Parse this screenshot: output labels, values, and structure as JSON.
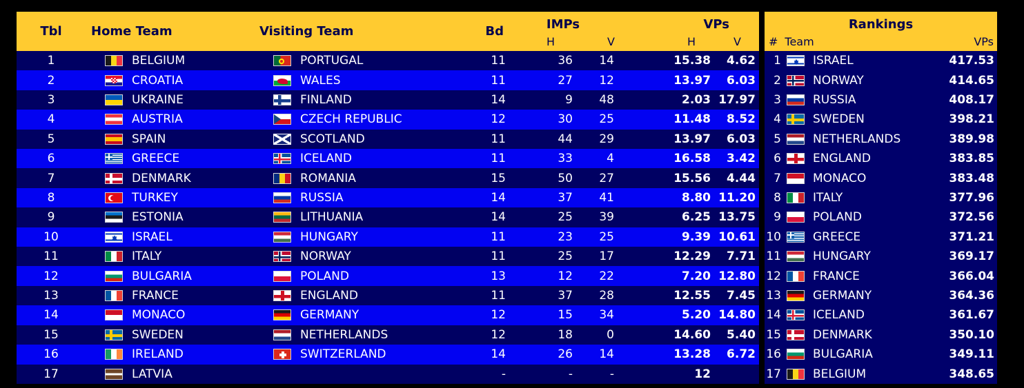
{
  "colors": {
    "gold": "#FFCB30",
    "header_text": "#00004D",
    "row_dark": "#000063",
    "row_bright": "#0202F2",
    "ranking_row": "#00006B",
    "page_bg": "#000000",
    "text": "#FFFFFF"
  },
  "results": {
    "headers": {
      "tbl": "Tbl",
      "home": "Home Team",
      "visiting": "Visiting Team",
      "bd": "Bd",
      "imps": "IMPs",
      "vps": "VPs",
      "h": "H",
      "v": "V"
    },
    "rows": [
      {
        "tbl": "1",
        "home": "BELGIUM",
        "home_flag": "belgium",
        "visiting": "PORTUGAL",
        "visiting_flag": "portugal",
        "bd": "11",
        "imp_h": "36",
        "imp_v": "14",
        "vp_h": "15.38",
        "vp_v": "4.62"
      },
      {
        "tbl": "2",
        "home": "CROATIA",
        "home_flag": "croatia",
        "visiting": "WALES",
        "visiting_flag": "wales",
        "bd": "11",
        "imp_h": "27",
        "imp_v": "12",
        "vp_h": "13.97",
        "vp_v": "6.03"
      },
      {
        "tbl": "3",
        "home": "UKRAINE",
        "home_flag": "ukraine",
        "visiting": "FINLAND",
        "visiting_flag": "finland",
        "bd": "14",
        "imp_h": "9",
        "imp_v": "48",
        "vp_h": "2.03",
        "vp_v": "17.97"
      },
      {
        "tbl": "4",
        "home": "AUSTRIA",
        "home_flag": "austria",
        "visiting": "CZECH REPUBLIC",
        "visiting_flag": "czech",
        "bd": "12",
        "imp_h": "30",
        "imp_v": "25",
        "vp_h": "11.48",
        "vp_v": "8.52"
      },
      {
        "tbl": "5",
        "home": "SPAIN",
        "home_flag": "spain",
        "visiting": "SCOTLAND",
        "visiting_flag": "scotland",
        "bd": "11",
        "imp_h": "44",
        "imp_v": "29",
        "vp_h": "13.97",
        "vp_v": "6.03"
      },
      {
        "tbl": "6",
        "home": "GREECE",
        "home_flag": "greece",
        "visiting": "ICELAND",
        "visiting_flag": "iceland",
        "bd": "11",
        "imp_h": "33",
        "imp_v": "4",
        "vp_h": "16.58",
        "vp_v": "3.42"
      },
      {
        "tbl": "7",
        "home": "DENMARK",
        "home_flag": "denmark",
        "visiting": "ROMANIA",
        "visiting_flag": "romania",
        "bd": "15",
        "imp_h": "50",
        "imp_v": "27",
        "vp_h": "15.56",
        "vp_v": "4.44"
      },
      {
        "tbl": "8",
        "home": "TURKEY",
        "home_flag": "turkey",
        "visiting": "RUSSIA",
        "visiting_flag": "russia",
        "bd": "14",
        "imp_h": "37",
        "imp_v": "41",
        "vp_h": "8.80",
        "vp_v": "11.20"
      },
      {
        "tbl": "9",
        "home": "ESTONIA",
        "home_flag": "estonia",
        "visiting": "LITHUANIA",
        "visiting_flag": "lithuania",
        "bd": "14",
        "imp_h": "25",
        "imp_v": "39",
        "vp_h": "6.25",
        "vp_v": "13.75"
      },
      {
        "tbl": "10",
        "home": "ISRAEL",
        "home_flag": "israel",
        "visiting": "HUNGARY",
        "visiting_flag": "hungary",
        "bd": "11",
        "imp_h": "23",
        "imp_v": "25",
        "vp_h": "9.39",
        "vp_v": "10.61"
      },
      {
        "tbl": "11",
        "home": "ITALY",
        "home_flag": "italy",
        "visiting": "NORWAY",
        "visiting_flag": "norway",
        "bd": "11",
        "imp_h": "25",
        "imp_v": "17",
        "vp_h": "12.29",
        "vp_v": "7.71"
      },
      {
        "tbl": "12",
        "home": "BULGARIA",
        "home_flag": "bulgaria",
        "visiting": "POLAND",
        "visiting_flag": "poland",
        "bd": "13",
        "imp_h": "12",
        "imp_v": "22",
        "vp_h": "7.20",
        "vp_v": "12.80"
      },
      {
        "tbl": "13",
        "home": "FRANCE",
        "home_flag": "france",
        "visiting": "ENGLAND",
        "visiting_flag": "england",
        "bd": "11",
        "imp_h": "37",
        "imp_v": "28",
        "vp_h": "12.55",
        "vp_v": "7.45"
      },
      {
        "tbl": "14",
        "home": "MONACO",
        "home_flag": "monaco",
        "visiting": "GERMANY",
        "visiting_flag": "germany",
        "bd": "12",
        "imp_h": "15",
        "imp_v": "34",
        "vp_h": "5.20",
        "vp_v": "14.80"
      },
      {
        "tbl": "15",
        "home": "SWEDEN",
        "home_flag": "sweden",
        "visiting": "NETHERLANDS",
        "visiting_flag": "netherlands",
        "bd": "12",
        "imp_h": "18",
        "imp_v": "0",
        "vp_h": "14.60",
        "vp_v": "5.40"
      },
      {
        "tbl": "16",
        "home": "IRELAND",
        "home_flag": "ireland",
        "visiting": "SWITZERLAND",
        "visiting_flag": "switzerland",
        "bd": "14",
        "imp_h": "26",
        "imp_v": "14",
        "vp_h": "13.28",
        "vp_v": "6.72"
      },
      {
        "tbl": "17",
        "home": "LATVIA",
        "home_flag": "latvia",
        "visiting": "",
        "visiting_flag": "",
        "bd": "-",
        "imp_h": "-",
        "imp_v": "-",
        "vp_h": "12",
        "vp_v": ""
      }
    ]
  },
  "rankings": {
    "title": "Rankings",
    "headers": {
      "rank": "#",
      "team": "Team",
      "vps": "VPs"
    },
    "rows": [
      {
        "rank": "1",
        "team": "ISRAEL",
        "flag": "israel",
        "vps": "417.53"
      },
      {
        "rank": "2",
        "team": "NORWAY",
        "flag": "norway",
        "vps": "414.65"
      },
      {
        "rank": "3",
        "team": "RUSSIA",
        "flag": "russia",
        "vps": "408.17"
      },
      {
        "rank": "4",
        "team": "SWEDEN",
        "flag": "sweden",
        "vps": "398.21"
      },
      {
        "rank": "5",
        "team": "NETHERLANDS",
        "flag": "netherlands",
        "vps": "389.98"
      },
      {
        "rank": "6",
        "team": "ENGLAND",
        "flag": "england",
        "vps": "383.85"
      },
      {
        "rank": "7",
        "team": "MONACO",
        "flag": "monaco",
        "vps": "383.48"
      },
      {
        "rank": "8",
        "team": "ITALY",
        "flag": "italy",
        "vps": "377.96"
      },
      {
        "rank": "9",
        "team": "POLAND",
        "flag": "poland",
        "vps": "372.56"
      },
      {
        "rank": "10",
        "team": "GREECE",
        "flag": "greece",
        "vps": "371.21"
      },
      {
        "rank": "11",
        "team": "HUNGARY",
        "flag": "hungary",
        "vps": "369.17"
      },
      {
        "rank": "12",
        "team": "FRANCE",
        "flag": "france",
        "vps": "366.04"
      },
      {
        "rank": "13",
        "team": "GERMANY",
        "flag": "germany",
        "vps": "364.36"
      },
      {
        "rank": "14",
        "team": "ICELAND",
        "flag": "iceland",
        "vps": "361.67"
      },
      {
        "rank": "15",
        "team": "DENMARK",
        "flag": "denmark",
        "vps": "350.10"
      },
      {
        "rank": "16",
        "team": "BULGARIA",
        "flag": "bulgaria",
        "vps": "349.11"
      },
      {
        "rank": "17",
        "team": "BELGIUM",
        "flag": "belgium",
        "vps": "348.65"
      }
    ]
  }
}
